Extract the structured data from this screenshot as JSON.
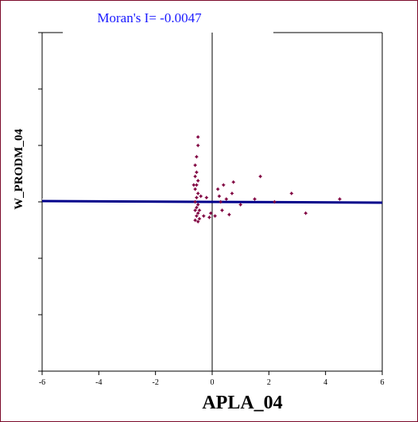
{
  "chart_data": {
    "type": "scatter",
    "title": "Moran's I= -0.0047",
    "xlabel": "APLA_04",
    "ylabel": "W_PRODM_04",
    "xlim": [
      -6,
      6
    ],
    "ylim": [
      -6,
      6
    ],
    "xticks": [
      "-6",
      "-4",
      "-2",
      "0",
      "2",
      "4",
      "6"
    ],
    "grid": false,
    "colors": {
      "points": "#800040",
      "regression_line": "#00008b",
      "reference_line": "#ffffff",
      "title": "#1a1aff",
      "frame": "#7b0a2a"
    },
    "regression": {
      "slope": -0.0047,
      "intercept": 0.0
    },
    "reference": {
      "x": [
        -6,
        0
      ],
      "y": [
        0.1,
        0.1
      ]
    },
    "points": [
      {
        "x": -0.5,
        "y": 2.3
      },
      {
        "x": -0.5,
        "y": 2.0
      },
      {
        "x": -0.55,
        "y": 1.6
      },
      {
        "x": -0.6,
        "y": 1.3
      },
      {
        "x": -0.55,
        "y": 1.05
      },
      {
        "x": -0.6,
        "y": 0.9
      },
      {
        "x": -0.5,
        "y": 0.75
      },
      {
        "x": -0.55,
        "y": 0.6
      },
      {
        "x": -0.6,
        "y": 0.45
      },
      {
        "x": -0.5,
        "y": 0.3
      },
      {
        "x": -0.55,
        "y": 0.15
      },
      {
        "x": -0.6,
        "y": 0.0
      },
      {
        "x": -0.5,
        "y": -0.1
      },
      {
        "x": -0.55,
        "y": -0.2
      },
      {
        "x": -0.6,
        "y": -0.3
      },
      {
        "x": -0.5,
        "y": -0.4
      },
      {
        "x": -0.55,
        "y": -0.5
      },
      {
        "x": -0.45,
        "y": -0.6
      },
      {
        "x": -0.6,
        "y": -0.65
      },
      {
        "x": -0.5,
        "y": -0.7
      },
      {
        "x": -0.4,
        "y": 0.2
      },
      {
        "x": -0.65,
        "y": 0.6
      },
      {
        "x": -0.45,
        "y": -0.3
      },
      {
        "x": -0.3,
        "y": -0.5
      },
      {
        "x": -0.2,
        "y": 0.15
      },
      {
        "x": -0.1,
        "y": -0.55
      },
      {
        "x": -0.05,
        "y": -0.4
      },
      {
        "x": 0.1,
        "y": -0.5
      },
      {
        "x": 0.2,
        "y": 0.45
      },
      {
        "x": 0.25,
        "y": 0.2
      },
      {
        "x": 0.3,
        "y": 0.0
      },
      {
        "x": 0.35,
        "y": -0.3
      },
      {
        "x": 0.4,
        "y": 0.6
      },
      {
        "x": 0.5,
        "y": 0.1
      },
      {
        "x": 0.6,
        "y": -0.45
      },
      {
        "x": 0.7,
        "y": 0.3
      },
      {
        "x": 0.75,
        "y": 0.7
      },
      {
        "x": 1.0,
        "y": -0.1
      },
      {
        "x": 1.5,
        "y": 0.1
      },
      {
        "x": 1.7,
        "y": 0.9
      },
      {
        "x": 2.2,
        "y": 0.0
      },
      {
        "x": 2.8,
        "y": 0.3
      },
      {
        "x": 3.3,
        "y": -0.4
      },
      {
        "x": 4.5,
        "y": 0.1
      }
    ]
  }
}
